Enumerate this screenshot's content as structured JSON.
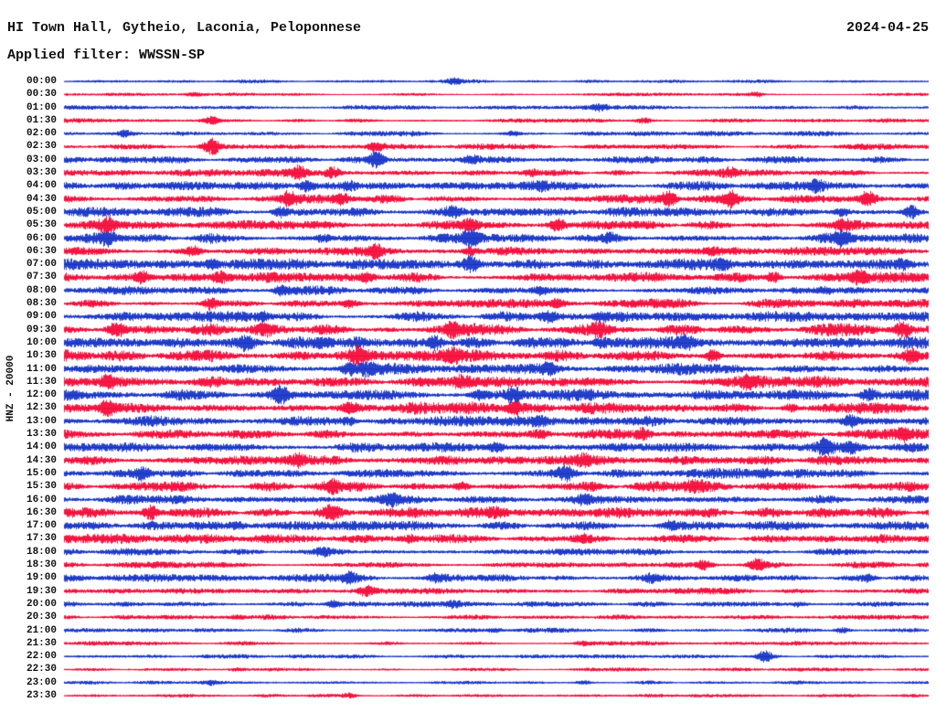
{
  "header": {
    "station_title": "HI Town Hall, Gytheio, Laconia, Peloponnese",
    "date": "2024-04-25",
    "filter_label": "Applied filter: WWSSN-SP"
  },
  "axis": {
    "channel_label": "HNZ - 20000"
  },
  "chart_data": {
    "type": "line",
    "subtype": "helicorder-seismogram",
    "title": "HI Town Hall, Gytheio, Laconia, Peloponnese",
    "date": "2024-04-25",
    "filter": "WWSSN-SP",
    "channel": "HNZ",
    "gain": 20000,
    "minutes_per_row": 30,
    "grid": false,
    "legend": "none",
    "colors": {
      "blue": "#0f2cc4",
      "red": "#f40031"
    },
    "seed": 20240425,
    "rows": [
      {
        "label": "00:00",
        "color": "blue",
        "amp": 1.2,
        "events": [
          [
            0.45,
            3
          ]
        ]
      },
      {
        "label": "00:30",
        "color": "red",
        "amp": 1.2,
        "events": [
          [
            0.15,
            2
          ],
          [
            0.8,
            2.5
          ]
        ]
      },
      {
        "label": "01:00",
        "color": "blue",
        "amp": 1.5,
        "events": [
          [
            0.62,
            3
          ]
        ]
      },
      {
        "label": "01:30",
        "color": "red",
        "amp": 1.5,
        "events": [
          [
            0.17,
            4
          ],
          [
            0.67,
            3
          ]
        ]
      },
      {
        "label": "02:00",
        "color": "blue",
        "amp": 1.8,
        "events": [
          [
            0.07,
            3
          ],
          [
            0.52,
            2.5
          ]
        ]
      },
      {
        "label": "02:30",
        "color": "red",
        "amp": 2.0,
        "events": [
          [
            0.17,
            9
          ],
          [
            0.36,
            4
          ]
        ]
      },
      {
        "label": "03:00",
        "color": "blue",
        "amp": 2.2,
        "events": [
          [
            0.36,
            8
          ],
          [
            0.47,
            3
          ]
        ]
      },
      {
        "label": "03:30",
        "color": "red",
        "amp": 2.5,
        "events": [
          [
            0.27,
            6
          ],
          [
            0.31,
            6
          ],
          [
            0.54,
            3
          ],
          [
            0.77,
            4
          ]
        ]
      },
      {
        "label": "04:00",
        "color": "blue",
        "amp": 3.0,
        "events": [
          [
            0.28,
            5
          ],
          [
            0.33,
            4
          ],
          [
            0.55,
            3
          ],
          [
            0.87,
            5
          ]
        ]
      },
      {
        "label": "04:30",
        "color": "red",
        "amp": 3.0,
        "events": [
          [
            0.26,
            6
          ],
          [
            0.32,
            5
          ],
          [
            0.7,
            8
          ],
          [
            0.77,
            7
          ],
          [
            0.93,
            8
          ]
        ]
      },
      {
        "label": "05:00",
        "color": "blue",
        "amp": 3.5,
        "events": [
          [
            0.25,
            5
          ],
          [
            0.45,
            4
          ],
          [
            0.9,
            4
          ],
          [
            0.98,
            7
          ]
        ]
      },
      {
        "label": "05:30",
        "color": "red",
        "amp": 3.5,
        "events": [
          [
            0.05,
            7
          ],
          [
            0.47,
            6
          ],
          [
            0.57,
            6
          ],
          [
            0.9,
            4
          ]
        ]
      },
      {
        "label": "06:00",
        "color": "blue",
        "amp": 3.5,
        "events": [
          [
            0.05,
            6
          ],
          [
            0.3,
            4
          ],
          [
            0.47,
            8
          ],
          [
            0.63,
            4
          ],
          [
            0.9,
            6
          ]
        ]
      },
      {
        "label": "06:30",
        "color": "red",
        "amp": 3.0,
        "events": [
          [
            0.15,
            5
          ],
          [
            0.36,
            6
          ],
          [
            0.47,
            5
          ],
          [
            0.75,
            3
          ]
        ]
      },
      {
        "label": "07:00",
        "color": "blue",
        "amp": 3.5,
        "events": [
          [
            0.17,
            4
          ],
          [
            0.47,
            8
          ],
          [
            0.76,
            5
          ],
          [
            0.97,
            5
          ]
        ]
      },
      {
        "label": "07:30",
        "color": "red",
        "amp": 3.5,
        "events": [
          [
            0.09,
            6
          ],
          [
            0.18,
            5
          ],
          [
            0.35,
            4
          ],
          [
            0.82,
            6
          ],
          [
            0.92,
            5
          ]
        ]
      },
      {
        "label": "08:00",
        "color": "blue",
        "amp": 3.0,
        "events": [
          [
            0.25,
            4
          ],
          [
            0.55,
            4
          ],
          [
            0.88,
            3
          ]
        ]
      },
      {
        "label": "08:30",
        "color": "red",
        "amp": 3.0,
        "events": [
          [
            0.17,
            6
          ],
          [
            0.33,
            4
          ],
          [
            0.57,
            5
          ]
        ]
      },
      {
        "label": "09:00",
        "color": "blue",
        "amp": 3.5,
        "events": [
          [
            0.23,
            4
          ],
          [
            0.56,
            5
          ],
          [
            0.62,
            4
          ]
        ]
      },
      {
        "label": "09:30",
        "color": "red",
        "amp": 4.0,
        "events": [
          [
            0.06,
            7
          ],
          [
            0.23,
            4
          ],
          [
            0.45,
            7
          ],
          [
            0.62,
            5
          ],
          [
            0.97,
            8
          ]
        ]
      },
      {
        "label": "10:00",
        "color": "blue",
        "amp": 4.0,
        "events": [
          [
            0.21,
            6
          ],
          [
            0.3,
            5
          ],
          [
            0.43,
            7
          ],
          [
            0.62,
            5
          ],
          [
            0.72,
            4
          ]
        ]
      },
      {
        "label": "10:30",
        "color": "red",
        "amp": 4.0,
        "events": [
          [
            0.34,
            6
          ],
          [
            0.45,
            5
          ],
          [
            0.75,
            6
          ],
          [
            0.98,
            5
          ]
        ]
      },
      {
        "label": "11:00",
        "color": "blue",
        "amp": 4.0,
        "events": [
          [
            0.33,
            7
          ],
          [
            0.35,
            6
          ],
          [
            0.56,
            5
          ]
        ]
      },
      {
        "label": "11:30",
        "color": "red",
        "amp": 4.0,
        "events": [
          [
            0.05,
            6
          ],
          [
            0.46,
            5
          ],
          [
            0.79,
            5
          ]
        ]
      },
      {
        "label": "12:00",
        "color": "blue",
        "amp": 4.0,
        "events": [
          [
            0.25,
            9
          ],
          [
            0.48,
            5
          ],
          [
            0.52,
            6
          ],
          [
            0.93,
            6
          ]
        ]
      },
      {
        "label": "12:30",
        "color": "red",
        "amp": 4.0,
        "events": [
          [
            0.05,
            7
          ],
          [
            0.33,
            5
          ],
          [
            0.52,
            5
          ],
          [
            0.84,
            4
          ]
        ]
      },
      {
        "label": "13:00",
        "color": "blue",
        "amp": 3.5,
        "events": [
          [
            0.33,
            4
          ],
          [
            0.55,
            4
          ],
          [
            0.91,
            5
          ]
        ]
      },
      {
        "label": "13:30",
        "color": "red",
        "amp": 3.5,
        "events": [
          [
            0.55,
            4
          ],
          [
            0.67,
            6
          ],
          [
            0.97,
            4
          ]
        ]
      },
      {
        "label": "14:00",
        "color": "blue",
        "amp": 3.5,
        "events": [
          [
            0.5,
            5
          ],
          [
            0.88,
            6
          ],
          [
            0.91,
            5
          ]
        ]
      },
      {
        "label": "14:30",
        "color": "red",
        "amp": 3.5,
        "events": [
          [
            0.27,
            5
          ],
          [
            0.6,
            4
          ]
        ]
      },
      {
        "label": "15:00",
        "color": "blue",
        "amp": 3.5,
        "events": [
          [
            0.09,
            6
          ],
          [
            0.58,
            6
          ],
          [
            0.81,
            5
          ]
        ]
      },
      {
        "label": "15:30",
        "color": "red",
        "amp": 3.5,
        "events": [
          [
            0.31,
            5
          ],
          [
            0.46,
            4
          ],
          [
            0.73,
            4
          ]
        ]
      },
      {
        "label": "16:00",
        "color": "blue",
        "amp": 3.0,
        "events": [
          [
            0.38,
            4
          ],
          [
            0.6,
            4
          ]
        ]
      },
      {
        "label": "16:30",
        "color": "red",
        "amp": 3.5,
        "events": [
          [
            0.1,
            7
          ],
          [
            0.31,
            6
          ],
          [
            0.5,
            4
          ]
        ]
      },
      {
        "label": "17:00",
        "color": "blue",
        "amp": 3.0,
        "events": [
          [
            0.2,
            4
          ],
          [
            0.7,
            3
          ]
        ]
      },
      {
        "label": "17:30",
        "color": "red",
        "amp": 3.0,
        "events": [
          [
            0.4,
            3
          ],
          [
            0.6,
            3
          ]
        ]
      },
      {
        "label": "18:00",
        "color": "blue",
        "amp": 2.5,
        "events": [
          [
            0.3,
            3
          ]
        ]
      },
      {
        "label": "18:30",
        "color": "red",
        "amp": 2.5,
        "events": [
          [
            0.74,
            5
          ],
          [
            0.8,
            5
          ]
        ]
      },
      {
        "label": "19:00",
        "color": "blue",
        "amp": 2.5,
        "events": [
          [
            0.33,
            4
          ],
          [
            0.43,
            3
          ],
          [
            0.68,
            3
          ],
          [
            0.93,
            3
          ]
        ]
      },
      {
        "label": "19:30",
        "color": "red",
        "amp": 2.0,
        "events": [
          [
            0.35,
            5
          ]
        ]
      },
      {
        "label": "20:00",
        "color": "blue",
        "amp": 2.0,
        "events": [
          [
            0.31,
            4
          ],
          [
            0.45,
            3
          ],
          [
            0.85,
            3
          ]
        ]
      },
      {
        "label": "20:30",
        "color": "red",
        "amp": 1.8,
        "events": [
          [
            0.2,
            2
          ]
        ]
      },
      {
        "label": "21:00",
        "color": "blue",
        "amp": 1.8,
        "events": [
          [
            0.5,
            2
          ],
          [
            0.9,
            3
          ]
        ]
      },
      {
        "label": "21:30",
        "color": "red",
        "amp": 1.5,
        "events": [
          [
            0.6,
            2
          ]
        ]
      },
      {
        "label": "22:00",
        "color": "blue",
        "amp": 1.5,
        "events": [
          [
            0.81,
            6
          ]
        ]
      },
      {
        "label": "22:30",
        "color": "red",
        "amp": 1.3,
        "events": [
          [
            0.2,
            2
          ]
        ]
      },
      {
        "label": "23:00",
        "color": "blue",
        "amp": 1.3,
        "events": [
          [
            0.17,
            2
          ],
          [
            0.6,
            2
          ]
        ]
      },
      {
        "label": "23:30",
        "color": "red",
        "amp": 1.3,
        "events": [
          [
            0.33,
            3
          ]
        ]
      }
    ]
  }
}
